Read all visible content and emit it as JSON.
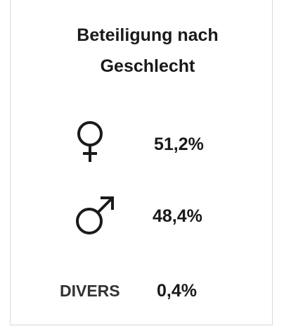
{
  "title": "Beteiligung nach Geschlecht",
  "items": [
    {
      "value": "51,2%"
    },
    {
      "value": "48,4%"
    },
    {
      "label": "DIVERS",
      "value": "0,4%"
    }
  ]
}
